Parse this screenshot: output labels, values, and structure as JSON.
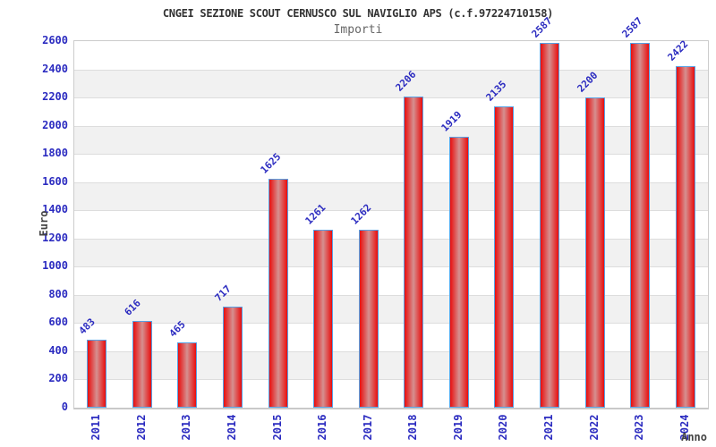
{
  "chart_data": {
    "type": "bar",
    "title": "CNGEI SEZIONE SCOUT CERNUSCO SUL NAVIGLIO APS (c.f.97224710158)",
    "subtitle": "Importi",
    "xlabel": "Anno",
    "ylabel": "Euro",
    "categories": [
      "2011",
      "2012",
      "2013",
      "2014",
      "2015",
      "2016",
      "2017",
      "2018",
      "2019",
      "2020",
      "2021",
      "2022",
      "2023",
      "2024"
    ],
    "values": [
      483,
      616,
      465,
      717,
      1625,
      1261,
      1262,
      2206,
      1919,
      2135,
      2587,
      2200,
      2587,
      2422
    ],
    "ylim": [
      0,
      2600
    ],
    "ytick_step": 200,
    "grid": true,
    "legend_position": "none",
    "value_labels_rotation_deg": -45,
    "x_labels_rotation_deg": -90,
    "colors": {
      "bar_edge": "#e81010",
      "bar_center": "#d59090",
      "bar_border": "#57a1e4",
      "axis_text_blue": "#2b2bc0",
      "band_gray": "#f1f1f1",
      "gridline": "#dddddd",
      "plot_border": "#cccccc",
      "title_color": "#333333",
      "subtitle_color": "#666666",
      "axis_title_color": "#444444"
    }
  }
}
